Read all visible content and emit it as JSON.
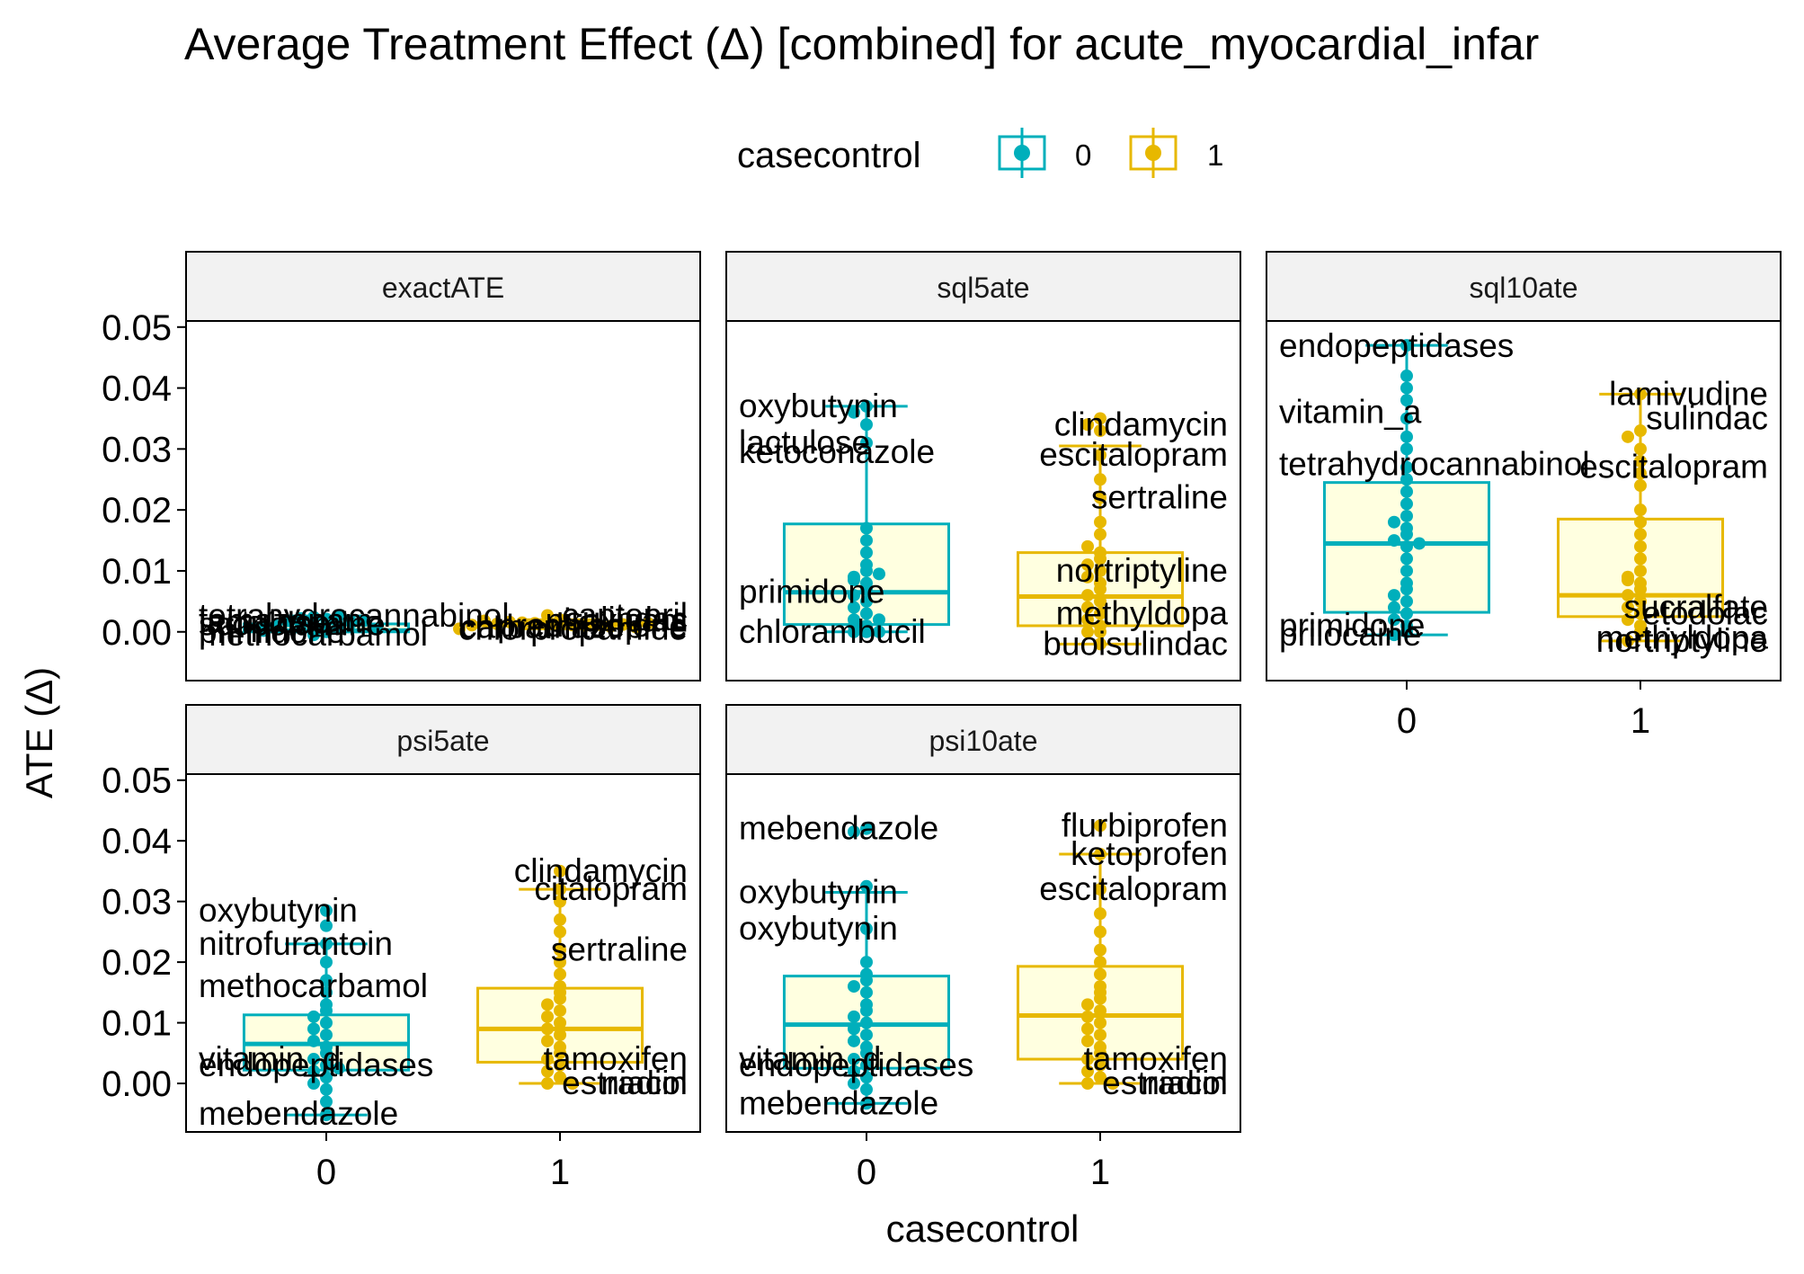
{
  "title": "Average Treatment Effect (Δ)  [combined] for acute_myocardial_infar",
  "legend": {
    "title": "casecontrol",
    "items": [
      {
        "label": "0",
        "color": "#00AFBB"
      },
      {
        "label": "1",
        "color": "#E7B800"
      }
    ]
  },
  "colors": {
    "case0": "#00AFBB",
    "case1": "#E7B800",
    "box_fill": "#FFFFE0",
    "strip_fill": "#F2F2F2"
  },
  "chart_data": {
    "type": "box",
    "xlabel": "casecontrol",
    "ylabel": "ATE (Δ)",
    "categories": [
      "0",
      "1"
    ],
    "ylim": [
      -0.008,
      0.051
    ],
    "yticks": [
      "0.00",
      "0.01",
      "0.02",
      "0.03",
      "0.04",
      "0.05"
    ],
    "grid": false,
    "legend_position": "top",
    "panels": [
      {
        "name": "exactATE",
        "groups": [
          {
            "casecontrol": "0",
            "q1": 0.0,
            "median": 0.0002,
            "q3": 0.0013,
            "whisker_low": 0.0,
            "whisker_high": 0.0026,
            "points": [
              0.0,
              0.0003,
              0.0006,
              0.0009,
              0.0012,
              0.0015,
              0.0018,
              0.0021,
              0.0024,
              0.0026,
              0.0018,
              0.001,
              0.0022,
              0.0005,
              -0.0005,
              0.0002
            ]
          },
          {
            "casecontrol": "1",
            "q1": 0.001,
            "median": 0.0012,
            "q3": 0.0015,
            "whisker_low": 0.0005,
            "whisker_high": 0.002,
            "points": [
              0.0012,
              0.0013,
              0.0011,
              0.0014,
              0.001,
              0.0015,
              0.0012,
              0.0016,
              0.0009,
              0.0013,
              0.0012,
              0.0018,
              0.0008,
              0.0011,
              0.0014,
              0.0005,
              0.002,
              0.0027
            ]
          }
        ],
        "labels": [
          {
            "text": "tetrahydrocannabinol",
            "group": "0",
            "value": 0.0026
          },
          {
            "text": "temazepam",
            "group": "0",
            "value": 0.0018
          },
          {
            "text": "lactulose",
            "group": "0",
            "value": 0.0015
          },
          {
            "text": "scopolamine",
            "group": "0",
            "value": 0.0012
          },
          {
            "text": "primidone",
            "group": "0",
            "value": 0.0
          },
          {
            "text": "methocarbamol",
            "group": "0",
            "value": -0.0005
          },
          {
            "text": "captopril",
            "group": "1",
            "value": 0.0027
          },
          {
            "text": "sulindac",
            "group": "1",
            "value": 0.002
          },
          {
            "text": "piroxicam",
            "group": "1",
            "value": 0.0018
          },
          {
            "text": "chlorpropamide",
            "group": "1",
            "value": 0.0005
          },
          {
            "text": "carbamazepine",
            "group": "1",
            "value": 0.0008
          },
          {
            "text": "prednisolone",
            "group": "1",
            "value": 0.001
          }
        ]
      },
      {
        "name": "sql5ate",
        "groups": [
          {
            "casecontrol": "0",
            "q1": 0.0012,
            "median": 0.0065,
            "q3": 0.0177,
            "whisker_low": 0.0,
            "whisker_high": 0.037,
            "points": [
              0.037,
              0.036,
              0.034,
              0.031,
              0.017,
              0.015,
              0.013,
              0.011,
              0.01,
              0.009,
              0.008,
              0.007,
              0.006,
              0.005,
              0.004,
              0.003,
              0.002,
              0.001,
              0.0,
              0.0,
              0.0,
              0.001,
              0.002,
              0.0085,
              0.0095
            ]
          },
          {
            "casecontrol": "1",
            "q1": 0.001,
            "median": 0.0058,
            "q3": 0.013,
            "whisker_low": -0.002,
            "whisker_high": 0.0305,
            "points": [
              0.035,
              0.034,
              0.033,
              0.029,
              0.025,
              0.022,
              0.018,
              0.013,
              0.012,
              0.011,
              0.01,
              0.009,
              0.008,
              0.007,
              0.006,
              0.005,
              0.004,
              0.003,
              0.002,
              0.001,
              0.0,
              0.0,
              -0.002,
              0.016,
              0.014
            ]
          }
        ],
        "labels": [
          {
            "text": "oxybutynin",
            "group": "0",
            "value": 0.037
          },
          {
            "text": "lactulose",
            "group": "0",
            "value": 0.031
          },
          {
            "text": "ketoconazole",
            "group": "0",
            "value": 0.0295
          },
          {
            "text": "primidone",
            "group": "0",
            "value": 0.0065
          },
          {
            "text": "chlorambucil",
            "group": "0",
            "value": 0.0
          },
          {
            "text": "clindamycin",
            "group": "1",
            "value": 0.034
          },
          {
            "text": "escitalopram",
            "group": "1",
            "value": 0.029
          },
          {
            "text": "sertraline",
            "group": "1",
            "value": 0.022
          },
          {
            "text": "nortriptyline",
            "group": "1",
            "value": 0.01
          },
          {
            "text": "methyldopa",
            "group": "1",
            "value": 0.003
          },
          {
            "text": "buoisulindac",
            "group": "1",
            "value": -0.002
          }
        ]
      },
      {
        "name": "sql10ate",
        "groups": [
          {
            "casecontrol": "0",
            "q1": 0.0032,
            "median": 0.0145,
            "q3": 0.0245,
            "whisker_low": -0.0005,
            "whisker_high": 0.047,
            "points": [
              0.047,
              0.042,
              0.04,
              0.038,
              0.035,
              0.032,
              0.03,
              0.027,
              0.025,
              0.023,
              0.021,
              0.019,
              0.017,
              0.016,
              0.015,
              0.0145,
              0.014,
              0.012,
              0.01,
              0.008,
              0.007,
              0.006,
              0.005,
              0.004,
              0.003,
              0.002,
              0.001,
              0.0,
              -0.0005,
              0.018
            ]
          },
          {
            "casecontrol": "1",
            "q1": 0.0025,
            "median": 0.006,
            "q3": 0.0185,
            "whisker_low": -0.0015,
            "whisker_high": 0.039,
            "points": [
              0.039,
              0.033,
              0.032,
              0.03,
              0.028,
              0.026,
              0.024,
              0.02,
              0.018,
              0.016,
              0.014,
              0.012,
              0.01,
              0.009,
              0.008,
              0.007,
              0.006,
              0.005,
              0.004,
              0.003,
              0.002,
              0.001,
              0.0,
              -0.0015,
              0.0085
            ]
          }
        ],
        "labels": [
          {
            "text": "endopeptidases",
            "group": "0",
            "value": 0.047
          },
          {
            "text": "vitamin_a",
            "group": "0",
            "value": 0.036
          },
          {
            "text": "tetrahydrocannabinol",
            "group": "0",
            "value": 0.0275
          },
          {
            "text": "primidone",
            "group": "0",
            "value": 0.001
          },
          {
            "text": "prilocaine",
            "group": "0",
            "value": -0.0005
          },
          {
            "text": "lamivudine",
            "group": "1",
            "value": 0.039
          },
          {
            "text": "sulindac",
            "group": "1",
            "value": 0.035
          },
          {
            "text": "escitalopram",
            "group": "1",
            "value": 0.027
          },
          {
            "text": "sucralfate",
            "group": "1",
            "value": 0.004
          },
          {
            "text": "etodolac",
            "group": "1",
            "value": 0.003
          },
          {
            "text": "methyldopa",
            "group": "1",
            "value": -0.001
          },
          {
            "text": "nortriptyline",
            "group": "1",
            "value": -0.0015
          }
        ]
      },
      {
        "name": "psi5ate",
        "groups": [
          {
            "casecontrol": "0",
            "q1": 0.0022,
            "median": 0.0065,
            "q3": 0.0113,
            "whisker_low": -0.0052,
            "whisker_high": 0.023,
            "points": [
              0.0285,
              0.026,
              0.023,
              0.02,
              0.017,
              0.015,
              0.013,
              0.012,
              0.011,
              0.01,
              0.009,
              0.008,
              0.007,
              0.006,
              0.005,
              0.004,
              0.003,
              0.002,
              0.001,
              0.0,
              -0.001,
              -0.003,
              -0.0052,
              0.0025
            ]
          },
          {
            "casecontrol": "1",
            "q1": 0.0035,
            "median": 0.009,
            "q3": 0.0157,
            "whisker_low": 0.0,
            "whisker_high": 0.032,
            "points": [
              0.035,
              0.032,
              0.03,
              0.027,
              0.025,
              0.022,
              0.02,
              0.018,
              0.016,
              0.015,
              0.014,
              0.013,
              0.012,
              0.011,
              0.01,
              0.009,
              0.008,
              0.007,
              0.006,
              0.005,
              0.004,
              0.003,
              0.002,
              0.001,
              0.0,
              0.0
            ]
          }
        ],
        "labels": [
          {
            "text": "oxybutynin",
            "group": "0",
            "value": 0.0285
          },
          {
            "text": "nitrofurantoin",
            "group": "0",
            "value": 0.023
          },
          {
            "text": "methocarbamol",
            "group": "0",
            "value": 0.016
          },
          {
            "text": "vitamin_d",
            "group": "0",
            "value": 0.004
          },
          {
            "text": "endopeptidases",
            "group": "0",
            "value": 0.003
          },
          {
            "text": "mebendazole",
            "group": "0",
            "value": -0.0052
          },
          {
            "text": "clindamycin",
            "group": "1",
            "value": 0.035
          },
          {
            "text": "citalopram",
            "group": "1",
            "value": 0.032
          },
          {
            "text": "sertraline",
            "group": "1",
            "value": 0.022
          },
          {
            "text": "tamoxifen",
            "group": "1",
            "value": 0.004
          },
          {
            "text": "niacin",
            "group": "1",
            "value": 0.0
          },
          {
            "text": "estradiol",
            "group": "1",
            "value": 0.0
          }
        ]
      },
      {
        "name": "psi10ate",
        "groups": [
          {
            "casecontrol": "0",
            "q1": 0.0025,
            "median": 0.0097,
            "q3": 0.0177,
            "whisker_low": -0.0033,
            "whisker_high": 0.0315,
            "points": [
              0.042,
              0.0415,
              0.0325,
              0.0255,
              0.02,
              0.018,
              0.017,
              0.016,
              0.015,
              0.013,
              0.012,
              0.011,
              0.01,
              0.009,
              0.008,
              0.007,
              0.006,
              0.005,
              0.004,
              0.003,
              0.002,
              0.001,
              0.0,
              -0.001,
              -0.0033
            ]
          },
          {
            "casecontrol": "1",
            "q1": 0.004,
            "median": 0.0112,
            "q3": 0.0193,
            "whisker_low": 0.0,
            "whisker_high": 0.0378,
            "points": [
              0.0425,
              0.0378,
              0.032,
              0.028,
              0.025,
              0.022,
              0.02,
              0.018,
              0.016,
              0.015,
              0.014,
              0.013,
              0.012,
              0.011,
              0.01,
              0.009,
              0.008,
              0.007,
              0.006,
              0.005,
              0.004,
              0.003,
              0.002,
              0.001,
              0.0,
              0.0
            ]
          }
        ],
        "labels": [
          {
            "text": "mebendazole",
            "group": "0",
            "value": 0.042
          },
          {
            "text": "oxybutynin",
            "group": "0",
            "value": 0.0315
          },
          {
            "text": "oxybutynin",
            "group": "0",
            "value": 0.0255
          },
          {
            "text": "vitamin_d",
            "group": "0",
            "value": 0.004
          },
          {
            "text": "endopeptidases",
            "group": "0",
            "value": 0.003
          },
          {
            "text": "mebendazole",
            "group": "0",
            "value": -0.0033
          },
          {
            "text": "flurbiprofen",
            "group": "1",
            "value": 0.0425
          },
          {
            "text": "ketoprofen",
            "group": "1",
            "value": 0.0378
          },
          {
            "text": "escitalopram",
            "group": "1",
            "value": 0.032
          },
          {
            "text": "tamoxifen",
            "group": "1",
            "value": 0.004
          },
          {
            "text": "niacin",
            "group": "1",
            "value": 0.0
          },
          {
            "text": "estradiol",
            "group": "1",
            "value": 0.0
          }
        ]
      }
    ]
  }
}
